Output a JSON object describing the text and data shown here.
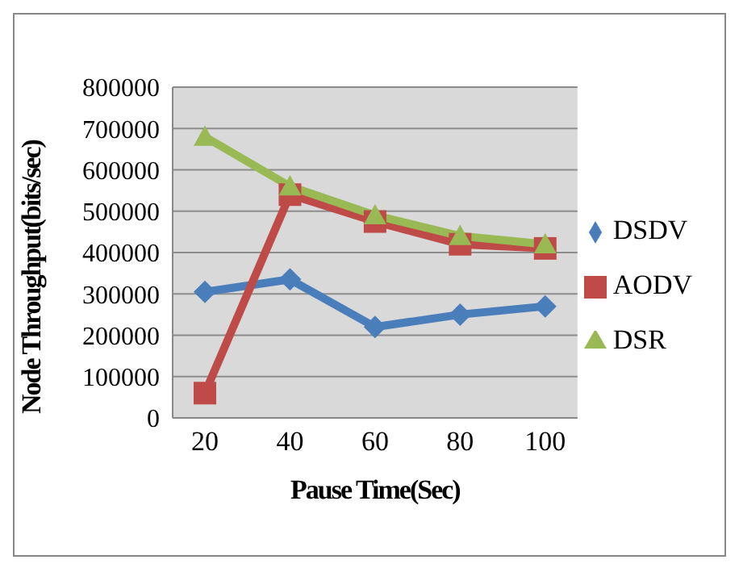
{
  "chart_data": {
    "type": "line",
    "xlabel": "Pause Time(Sec)",
    "ylabel": "Node Throughput(bits/sec)",
    "categories": [
      "20",
      "40",
      "60",
      "80",
      "100"
    ],
    "series": [
      {
        "name": "DSDV",
        "color": "#4a7ebb",
        "marker": "diamond",
        "values": [
          305000,
          335000,
          220000,
          250000,
          270000
        ]
      },
      {
        "name": "AODV",
        "color": "#be4b48",
        "marker": "square",
        "values": [
          60000,
          540000,
          475000,
          420000,
          410000
        ]
      },
      {
        "name": "DSR",
        "color": "#98b954",
        "marker": "triangle",
        "values": [
          680000,
          560000,
          490000,
          440000,
          420000
        ]
      }
    ],
    "ylim": [
      0,
      800000
    ],
    "yticks": [
      0,
      100000,
      200000,
      300000,
      400000,
      500000,
      600000,
      700000,
      800000
    ],
    "grid": "y",
    "legend": "right"
  }
}
